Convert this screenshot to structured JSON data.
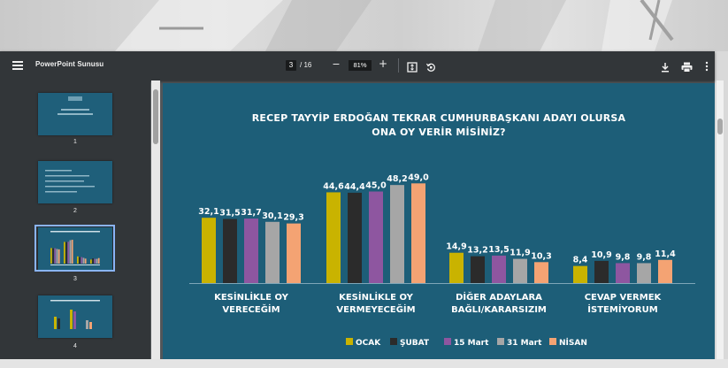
{
  "viewer": {
    "doc_title": "PowerPoint Sunusu",
    "current_page": "3",
    "total_pages": "/ 16",
    "zoom": "81%",
    "zoom_out_glyph": "−",
    "zoom_in_glyph": "+"
  },
  "thumbnails": [
    {
      "page": "1"
    },
    {
      "page": "2"
    },
    {
      "page": "3"
    },
    {
      "page": "4"
    }
  ],
  "colors": {
    "toolbar_bg": "#323639",
    "slide_bg": "#1d5e78",
    "series": [
      "#c9b300",
      "#2b2b2b",
      "#8e56a0",
      "#a6a6a6",
      "#f4a373"
    ]
  },
  "slide": {
    "title_line1": "RECEP TAYYİP ERDOĞAN TEKRAR CUMHURBAŞKANI ADAYI OLURSA",
    "title_line2": "ONA OY VERİR MİSİNİZ?"
  },
  "chart_data": {
    "type": "bar",
    "title": "RECEP TAYYİP ERDOĞAN TEKRAR CUMHURBAŞKANI ADAYI OLURSA ONA OY VERİR MİSİNİZ?",
    "categories": [
      [
        "KESİNLİKLE OY",
        "VERECEĞİM"
      ],
      [
        "KESİNLİKLE OY",
        "VERMEYECEĞİM"
      ],
      [
        "DİĞER ADAYLARA",
        "BAĞLI/KARARSIZIM"
      ],
      [
        "CEVAP VERMEK",
        "İSTEMİYORUM"
      ]
    ],
    "series": [
      {
        "name": "OCAK",
        "values": [
          32.1,
          44.6,
          14.9,
          8.4
        ],
        "labels": [
          "32,1",
          "44,6",
          "14,9",
          "8,4"
        ]
      },
      {
        "name": "ŞUBAT",
        "values": [
          31.5,
          44.4,
          13.2,
          10.9
        ],
        "labels": [
          "31,5",
          "44,4",
          "13,2",
          "10,9"
        ]
      },
      {
        "name": "15 Mart",
        "values": [
          31.7,
          45.0,
          13.5,
          9.8
        ],
        "labels": [
          "31,7",
          "45,0",
          "13,5",
          "9,8"
        ]
      },
      {
        "name": "31 Mart",
        "values": [
          30.1,
          48.2,
          11.9,
          9.8
        ],
        "labels": [
          "30,1",
          "48,2",
          "11,9",
          "9,8"
        ]
      },
      {
        "name": "NİSAN",
        "values": [
          29.3,
          49.0,
          10.3,
          11.4
        ],
        "labels": [
          "29,3",
          "49,0",
          "10,3",
          "11,4"
        ]
      }
    ],
    "legend_position": "bottom",
    "grid": false
  }
}
